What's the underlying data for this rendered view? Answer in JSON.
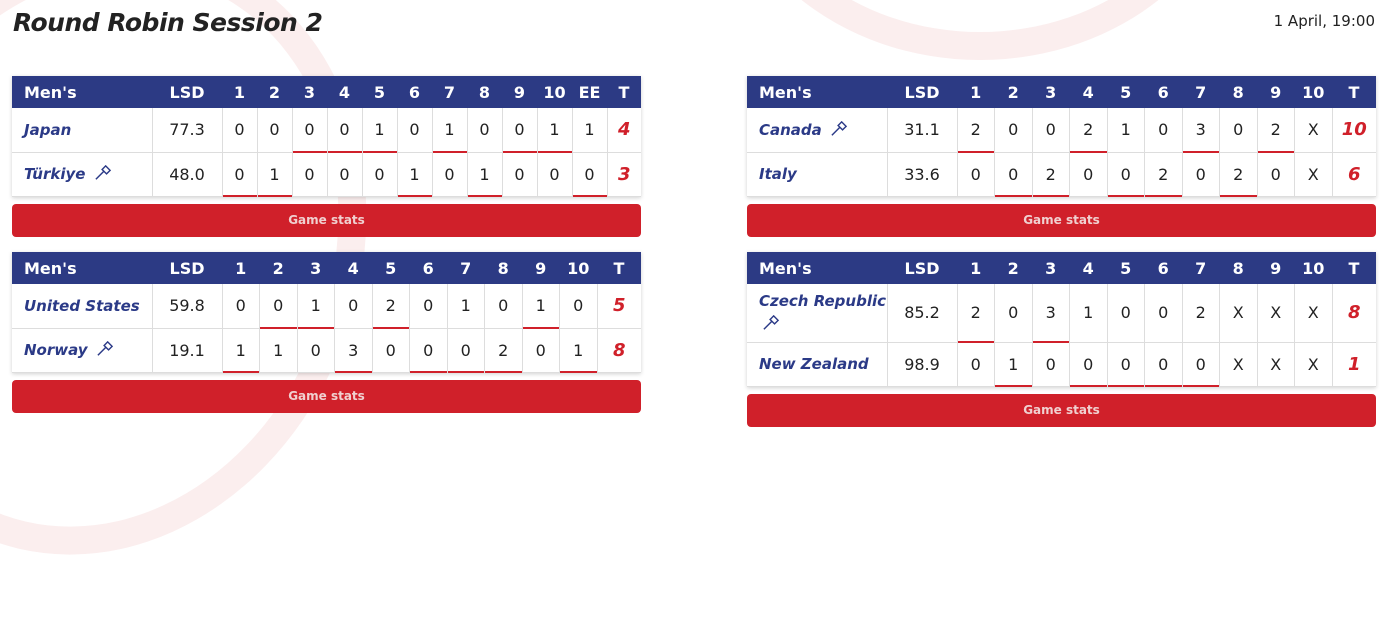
{
  "page": {
    "title": "Round Robin Session 2",
    "datetime": "1 April, 19:00"
  },
  "colors": {
    "header": "#2c3a84",
    "accent": "#d0202a",
    "team": "#2b3a87"
  },
  "games": [
    {
      "category": "Men's",
      "lsd_label": "LSD",
      "total_label": "T",
      "ends": [
        "1",
        "2",
        "3",
        "4",
        "5",
        "6",
        "7",
        "8",
        "9",
        "10",
        "EE"
      ],
      "teams": [
        {
          "name": "Japan",
          "lsd": "77.3",
          "scores": [
            "0",
            "0",
            "0",
            "0",
            "1",
            "0",
            "1",
            "0",
            "0",
            "1",
            "1"
          ],
          "total": "4",
          "first_hammer": false
        },
        {
          "name": "Türkiye",
          "lsd": "48.0",
          "scores": [
            "0",
            "1",
            "0",
            "0",
            "0",
            "1",
            "0",
            "1",
            "0",
            "0",
            "0"
          ],
          "total": "3",
          "first_hammer": true
        }
      ],
      "hammer_by_end": [
        1,
        1,
        0,
        0,
        0,
        1,
        0,
        1,
        0,
        0,
        1
      ],
      "button": "Game stats"
    },
    {
      "category": "Men's",
      "lsd_label": "LSD",
      "total_label": "T",
      "ends": [
        "1",
        "2",
        "3",
        "4",
        "5",
        "6",
        "7",
        "8",
        "9",
        "10"
      ],
      "teams": [
        {
          "name": "Canada",
          "lsd": "31.1",
          "scores": [
            "2",
            "0",
            "0",
            "2",
            "1",
            "0",
            "3",
            "0",
            "2",
            "X"
          ],
          "total": "10",
          "first_hammer": true
        },
        {
          "name": "Italy",
          "lsd": "33.6",
          "scores": [
            "0",
            "0",
            "2",
            "0",
            "0",
            "2",
            "0",
            "2",
            "0",
            "X"
          ],
          "total": "6",
          "first_hammer": false
        }
      ],
      "hammer_by_end": [
        0,
        1,
        1,
        0,
        1,
        1,
        0,
        1,
        0,
        null
      ],
      "button": "Game stats"
    },
    {
      "category": "Men's",
      "lsd_label": "LSD",
      "total_label": "T",
      "ends": [
        "1",
        "2",
        "3",
        "4",
        "5",
        "6",
        "7",
        "8",
        "9",
        "10"
      ],
      "teams": [
        {
          "name": "United States",
          "lsd": "59.8",
          "scores": [
            "0",
            "0",
            "1",
            "0",
            "2",
            "0",
            "1",
            "0",
            "1",
            "0"
          ],
          "total": "5",
          "first_hammer": false
        },
        {
          "name": "Norway",
          "lsd": "19.1",
          "scores": [
            "1",
            "1",
            "0",
            "3",
            "0",
            "0",
            "0",
            "2",
            "0",
            "1"
          ],
          "total": "8",
          "first_hammer": true
        }
      ],
      "hammer_by_end": [
        1,
        0,
        0,
        1,
        0,
        1,
        1,
        1,
        0,
        1
      ],
      "button": "Game stats"
    },
    {
      "category": "Men's",
      "lsd_label": "LSD",
      "total_label": "T",
      "ends": [
        "1",
        "2",
        "3",
        "4",
        "5",
        "6",
        "7",
        "8",
        "9",
        "10"
      ],
      "teams": [
        {
          "name": "Czech Republic",
          "lsd": "85.2",
          "scores": [
            "2",
            "0",
            "3",
            "1",
            "0",
            "0",
            "2",
            "X",
            "X",
            "X"
          ],
          "total": "8",
          "first_hammer": true
        },
        {
          "name": "New Zealand",
          "lsd": "98.9",
          "scores": [
            "0",
            "1",
            "0",
            "0",
            "0",
            "0",
            "0",
            "X",
            "X",
            "X"
          ],
          "total": "1",
          "first_hammer": false
        }
      ],
      "hammer_by_end": [
        0,
        1,
        0,
        1,
        1,
        1,
        1,
        null,
        null,
        null
      ],
      "button": "Game stats"
    }
  ]
}
